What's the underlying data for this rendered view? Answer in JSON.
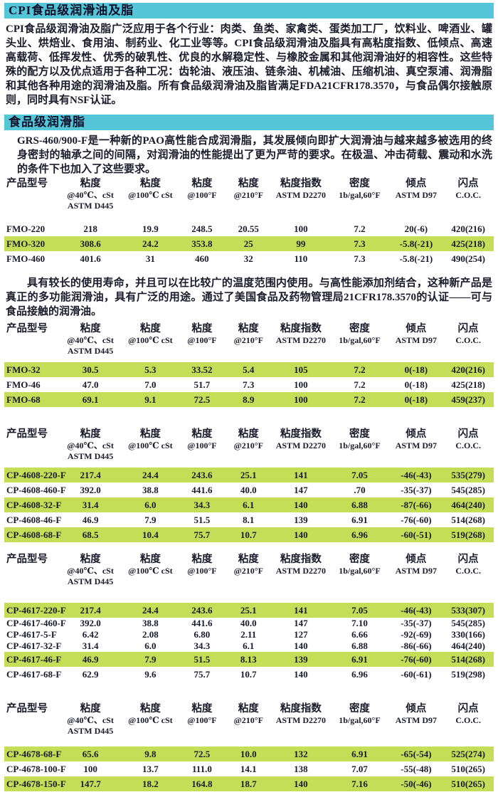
{
  "colors": {
    "accent_cyan": "#55c6d8",
    "highlight_green": "#c6dd58",
    "text": "#1a1a2b"
  },
  "sections": {
    "s1_title": "CPI食品级润滑油及脂",
    "s1_body": "CPI食品级润滑油及脂广泛应用于各个行业：肉类、鱼类、家禽类、蛋类加工厂，饮料业、啤酒业、罐头业、烘焙业、食用油、制药业、化工业等等。CPI食品级润滑油及脂具有高粘度指数、低倾点、高速高载荷、低挥发性、优秀的破乳性、优良的水解稳定性、与橡胶金属和其他润滑油好的相容性。这些特殊的配方以及优点适用于各种工况：齿轮油、液压油、链条油、机械油、压缩机油、真空泵浦、润滑脂和其他各种用途的润滑油及脂。所有食品级润滑油及脂皆满足FDA21CFR178.3570，与食品偶尔接触原则，同时具有NSF认证。",
    "s2_title": "食品级润滑脂",
    "s2_body": "GRS-460/900-F是一种新的PAO高性能合成润滑脂，其发展倾向即扩大润滑油与越来越多被选用的终身密封的轴承之间的间隔，对润滑油的性能提出了更为严苛的要求。在极温、冲击荷载、震动和水洗的条件下也加入了这些要求。",
    "mid_paragraph": "具有较长的使用寿命，并且可以在比较广的温度范围内使用。与高性能添加剂结合，这种新产品是真正的多功能润滑油，具有广泛的用途。通过了美国食品及药物管理局21CFR178.3570的认证——可与食品接触的润滑油。"
  },
  "table_header": {
    "columns": [
      {
        "title": "产品型号",
        "line2": "",
        "line3": ""
      },
      {
        "title": "粘度",
        "line2": "@40℃、cSt",
        "line3": "ASTM D445"
      },
      {
        "title": "粘度",
        "line2": "@100℃ cSt",
        "line3": ""
      },
      {
        "title": "粘度",
        "line2": "@100°F",
        "line3": ""
      },
      {
        "title": "粘度",
        "line2": "@210°F",
        "line3": ""
      },
      {
        "title": "粘度指数",
        "line2": "ASTM D2270",
        "line3": ""
      },
      {
        "title": "密度",
        "line2": "1b/gal,60°F",
        "line3": ""
      },
      {
        "title": "倾点",
        "line2": "ASTM D97",
        "line3": ""
      },
      {
        "title": "闪点",
        "line2": "C.O.C.",
        "line3": ""
      }
    ]
  },
  "tables": [
    {
      "name": "fmo-high-viscosity",
      "rows": [
        {
          "highlight": false,
          "cells": [
            "FMO-220",
            "218",
            "19.9",
            "248.5",
            "20.55",
            "100",
            "7.2",
            "20(-6)",
            "420(216)"
          ]
        },
        {
          "highlight": true,
          "cells": [
            "FMO-320",
            "308.6",
            "24.2",
            "353.8",
            "25",
            "99",
            "7.3",
            "-5.8(-21)",
            "425(218)"
          ]
        },
        {
          "highlight": false,
          "cells": [
            "FMO-460",
            "401.6",
            "31",
            "460",
            "32",
            "110",
            "7.3",
            "-5.8(-21)",
            "490(254)"
          ]
        }
      ]
    },
    {
      "name": "fmo-low-viscosity",
      "rows": [
        {
          "highlight": true,
          "cells": [
            "FMO-32",
            "30.5",
            "5.3",
            "33.52",
            "5.4",
            "105",
            "7.2",
            "0(-18)",
            "420(216)"
          ]
        },
        {
          "highlight": false,
          "cells": [
            "FMO-46",
            "47.0",
            "7.0",
            "51.7",
            "7.3",
            "100",
            "7.2",
            "0(-18)",
            "425(218)"
          ]
        },
        {
          "highlight": true,
          "cells": [
            "FMO-68",
            "69.1",
            "9.1",
            "72.5",
            "8.9",
            "100",
            "7.2",
            "0(-18)",
            "459(237)"
          ]
        }
      ]
    },
    {
      "name": "cp-4608-series",
      "rows": [
        {
          "highlight": true,
          "cells": [
            "CP-4608-220-F",
            "217.4",
            "24.4",
            "243.6",
            "25.1",
            "141",
            "7.05",
            "-46(-43)",
            "535(279)"
          ]
        },
        {
          "highlight": false,
          "cells": [
            "CP-4608-460-F",
            "392.0",
            "38.8",
            "441.6",
            "40.0",
            "147",
            ".70",
            "-35(-37)",
            "545(285)"
          ]
        },
        {
          "highlight": true,
          "cells": [
            "CP-4608-32-F",
            "31.4",
            "6.0",
            "34.3",
            "6.1",
            "140",
            "6.88",
            "-87(-66)",
            "464(240)"
          ]
        },
        {
          "highlight": false,
          "cells": [
            "CP-4608-46-F",
            "46.9",
            "7.9",
            "51.5",
            "8.1",
            "139",
            "6.91",
            "-76(-60)",
            "514(268)"
          ]
        },
        {
          "highlight": true,
          "cells": [
            "CP-4608-68-F",
            "68.5",
            "10.4",
            "75.7",
            "10.7",
            "140",
            "6.96",
            "-60(-51)",
            "519(268)"
          ]
        }
      ]
    },
    {
      "name": "cp-4617-series",
      "rows": [
        {
          "highlight": true,
          "cells": [
            "CP-4617-220-F",
            "217.4",
            "24.4",
            "243.6",
            "25.1",
            "141",
            "7.05",
            "-46(-43)",
            "533(307)"
          ]
        },
        {
          "highlight": false,
          "cells": [
            "CP-4617-460-F",
            "392.0",
            "38.8",
            "441.6",
            "40.0",
            "147",
            "7.10",
            "-35(-37)",
            "545(285)"
          ]
        },
        {
          "highlight": false,
          "cells": [
            "CP-4617-5-F",
            "6.42",
            "2.08",
            "6.80",
            "2.11",
            "127",
            "6.66",
            "-92(-69)",
            "330(166)"
          ]
        },
        {
          "highlight": false,
          "cells": [
            "CP-4617-32-F",
            "31.4",
            "6.0",
            "34.3",
            "6.1",
            "140",
            "6.88",
            "-86(-66)",
            "464(240)"
          ]
        },
        {
          "highlight": true,
          "cells": [
            "CP-4617-46-F",
            "46.9",
            "7.9",
            "51.5",
            "8.13",
            "139",
            "6.91",
            "-76(-60)",
            "514(268)"
          ]
        },
        {
          "highlight": false,
          "cells": [
            "CP-4617-68-F",
            "62.9",
            "9.6",
            "75.7",
            "10.7",
            "140",
            "6.96",
            "-60(-61)",
            "519(298)"
          ]
        }
      ]
    },
    {
      "name": "cp-4678-series",
      "rows": [
        {
          "highlight": true,
          "cells": [
            "CP-4678-68-F",
            "65.6",
            "9.8",
            "72.5",
            "10.0",
            "132",
            "6.91",
            "-65(-54)",
            "525(274)"
          ]
        },
        {
          "highlight": false,
          "cells": [
            "CP-4678-100-F",
            "100",
            "13.7",
            "111.0",
            "14.1",
            "138",
            "7.07",
            "-55(-48)",
            "510(265)"
          ]
        },
        {
          "highlight": true,
          "cells": [
            "CP-4678-150-F",
            "147.7",
            "18.2",
            "164.8",
            "18.7",
            "140",
            "7.16",
            "-50(-46)",
            "510(265)"
          ]
        }
      ]
    }
  ]
}
